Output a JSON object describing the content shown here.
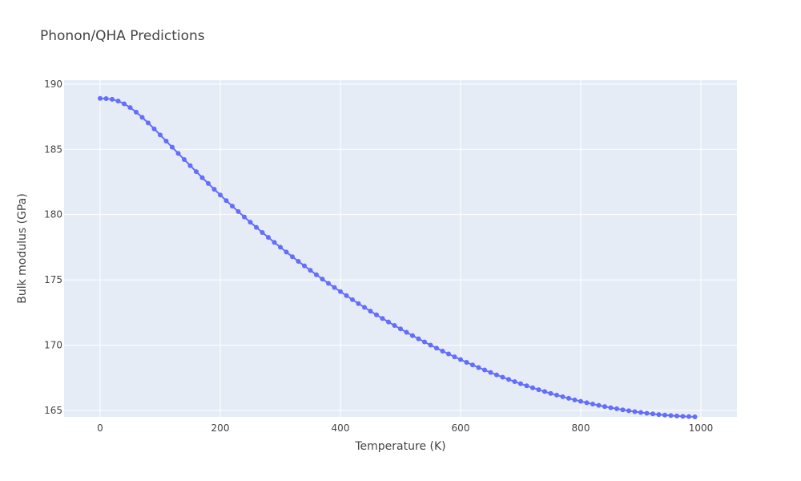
{
  "chart_data": {
    "type": "line",
    "title": "Phonon/QHA Predictions",
    "xlabel": "Temperature (K)",
    "ylabel": "Bulk modulus (GPa)",
    "xlim": [
      -60,
      1060
    ],
    "ylim": [
      164.5,
      190.3
    ],
    "x_ticks": [
      0,
      200,
      400,
      600,
      800,
      1000
    ],
    "y_ticks": [
      165,
      170,
      175,
      180,
      185,
      190
    ],
    "grid": true,
    "legend": "none",
    "series": [
      {
        "color": "#636efa",
        "mode": "lines+markers",
        "x": [
          0,
          10,
          20,
          30,
          40,
          50,
          60,
          70,
          80,
          90,
          100,
          110,
          120,
          130,
          140,
          150,
          160,
          170,
          180,
          190,
          200,
          210,
          220,
          230,
          240,
          250,
          260,
          270,
          280,
          290,
          300,
          310,
          320,
          330,
          340,
          350,
          360,
          370,
          380,
          390,
          400,
          410,
          420,
          430,
          440,
          450,
          460,
          470,
          480,
          490,
          500,
          510,
          520,
          530,
          540,
          550,
          560,
          570,
          580,
          590,
          600,
          610,
          620,
          630,
          640,
          650,
          660,
          670,
          680,
          690,
          700,
          710,
          720,
          730,
          740,
          750,
          760,
          770,
          780,
          790,
          800,
          810,
          820,
          830,
          840,
          850,
          860,
          870,
          880,
          890,
          900,
          910,
          920,
          930,
          940,
          950,
          960,
          970,
          980,
          990
        ],
        "y": [
          188.9,
          188.89,
          188.83,
          188.7,
          188.49,
          188.2,
          187.85,
          187.45,
          187.02,
          186.57,
          186.1,
          185.63,
          185.16,
          184.69,
          184.22,
          183.75,
          183.29,
          182.83,
          182.38,
          181.94,
          181.5,
          181.07,
          180.65,
          180.23,
          179.82,
          179.42,
          179.02,
          178.63,
          178.25,
          177.87,
          177.5,
          177.13,
          176.77,
          176.42,
          176.07,
          175.73,
          175.39,
          175.06,
          174.73,
          174.41,
          174.1,
          173.79,
          173.48,
          173.18,
          172.89,
          172.6,
          172.32,
          172.04,
          171.77,
          171.5,
          171.24,
          170.98,
          170.73,
          170.48,
          170.24,
          170.0,
          169.77,
          169.54,
          169.32,
          169.1,
          168.89,
          168.68,
          168.48,
          168.28,
          168.09,
          167.9,
          167.72,
          167.54,
          167.37,
          167.2,
          167.04,
          166.88,
          166.73,
          166.58,
          166.44,
          166.3,
          166.17,
          166.04,
          165.92,
          165.8,
          165.69,
          165.58,
          165.48,
          165.38,
          165.29,
          165.2,
          165.12,
          165.04,
          164.97,
          164.9,
          164.84,
          164.78,
          164.73,
          164.68,
          164.64,
          164.6,
          164.57,
          164.54,
          164.52,
          164.5
        ]
      }
    ]
  }
}
